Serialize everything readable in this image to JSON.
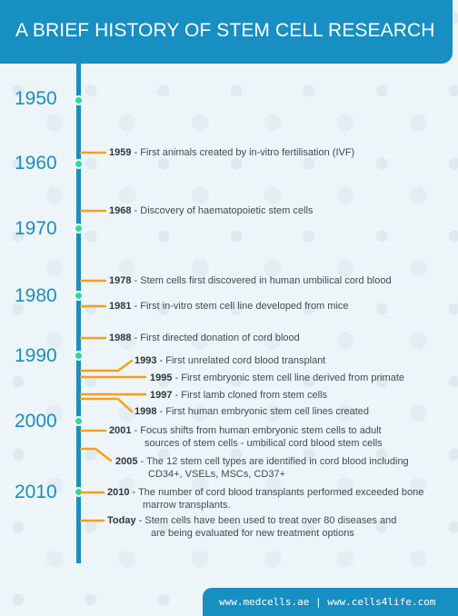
{
  "header": {
    "title": "A BRIEF HISTORY OF STEM CELL RESEARCH"
  },
  "decades": [
    "1950",
    "1960",
    "1970",
    "1980",
    "1990",
    "2000",
    "2010"
  ],
  "events": [
    {
      "year": "1959",
      "text": "First animals created by in-vitro fertilisation (IVF)"
    },
    {
      "year": "1968",
      "text": "Discovery of haematopoietic stem cells"
    },
    {
      "year": "1978",
      "text": "Stem cells first discovered in human umbilical cord blood"
    },
    {
      "year": "1981",
      "text": "First in-vitro stem cell line developed from mice"
    },
    {
      "year": "1988",
      "text": "First directed donation of cord blood"
    },
    {
      "year": "1993",
      "text": "First unrelated cord blood transplant"
    },
    {
      "year": "1995",
      "text": "First embryonic stem cell line derived from primate"
    },
    {
      "year": "1997",
      "text": "First lamb cloned from stem cells"
    },
    {
      "year": "1998",
      "text": "First human embryonic stem cell lines created"
    },
    {
      "year": "2001",
      "text": "Focus shifts from human embryonic stem cells to adult",
      "text2": "sources of stem cells - umbilical cord blood stem cells"
    },
    {
      "year": "2005",
      "text": "The 12 stem cell types are identified in cord blood including",
      "text2": "CD34+, VSELs, MSCs, CD37+"
    },
    {
      "year": "2010",
      "text": "The number of cord blood transplants performed exceeded bone",
      "text2": "marrow transplants."
    },
    {
      "year": "Today",
      "text": "Stem cells have been used to treat over 80 diseases and",
      "text2": "are being evaluated for new treatment options"
    }
  ],
  "footer": {
    "text": "www.medcells.ae | www.cells4life.com"
  },
  "colors": {
    "header": "#178fc2",
    "line": "#178fc2",
    "dot": "#2fd99b",
    "connector": "#f2a11f",
    "decade": "#1a8ec0"
  }
}
